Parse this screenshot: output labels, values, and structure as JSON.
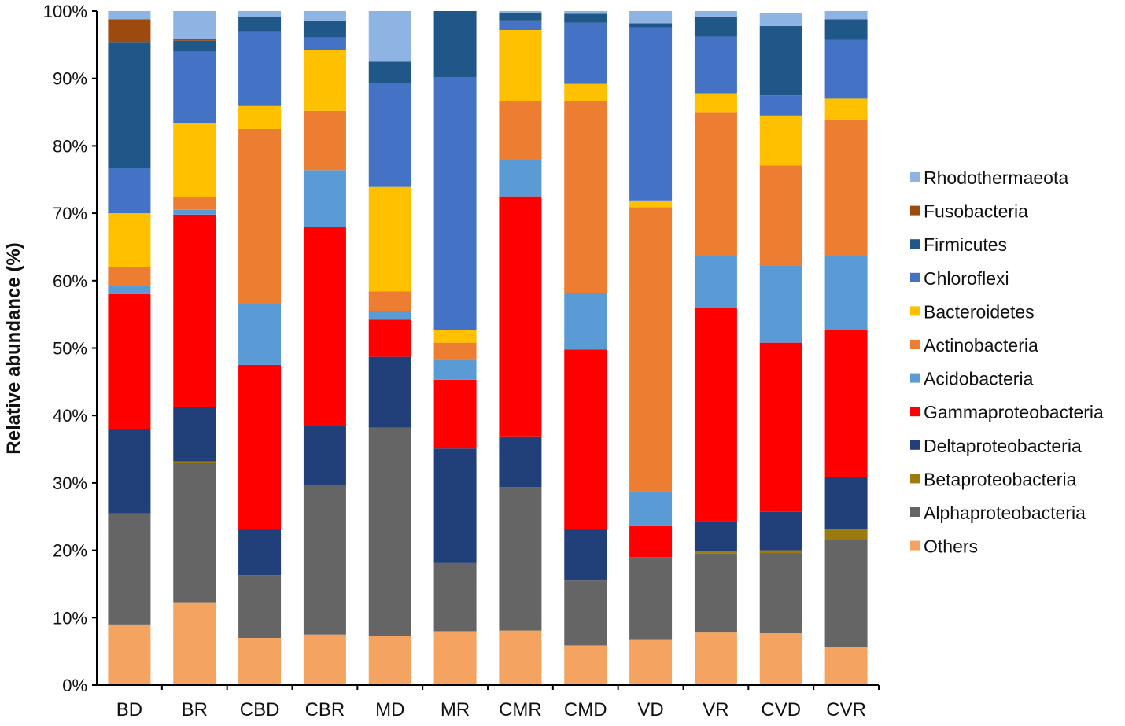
{
  "chart_data": {
    "type": "bar",
    "stacked": true,
    "percent": true,
    "title": "",
    "xlabel": "",
    "ylabel": "Relative abundance (%)",
    "ylim": [
      0,
      100
    ],
    "y_ticks": [
      "0%",
      "10%",
      "20%",
      "30%",
      "40%",
      "50%",
      "60%",
      "70%",
      "80%",
      "90%",
      "100%"
    ],
    "grid": false,
    "legend_position": "right",
    "categories": [
      "BD",
      "BR",
      "CBD",
      "CBR",
      "MD",
      "MR",
      "CMR",
      "CMD",
      "VD",
      "VR",
      "CVD",
      "CVR"
    ],
    "series": [
      {
        "name": "Others",
        "color": "#F4A460",
        "values": [
          9,
          12.3,
          7,
          7.5,
          7.3,
          8,
          8.1,
          5.9,
          6.7,
          7.8,
          7.7,
          5.6
        ]
      },
      {
        "name": "Alphaproteobacteria",
        "color": "#656565",
        "values": [
          16.5,
          20.7,
          9.3,
          22.2,
          30.9,
          10.1,
          21.3,
          9.6,
          12.3,
          11.7,
          11.9,
          15.9
        ]
      },
      {
        "name": "Betaproteobacteria",
        "color": "#9C7A0E",
        "values": [
          0,
          0.2,
          0,
          0,
          0,
          0,
          0,
          0,
          0,
          0.4,
          0.4,
          1.6
        ]
      },
      {
        "name": "Deltaproteobacteria",
        "color": "#213F78",
        "values": [
          12.5,
          8,
          6.8,
          8.7,
          10.5,
          17,
          7.5,
          7.6,
          0,
          4.3,
          5.7,
          7.8
        ]
      },
      {
        "name": "Gammaproteobacteria",
        "color": "#FF0000",
        "values": [
          20,
          28.6,
          24.4,
          29.6,
          5.5,
          10.2,
          35.6,
          26.7,
          4.6,
          31.8,
          25.1,
          21.8
        ]
      },
      {
        "name": "Acidobacteria",
        "color": "#5B9BD5",
        "values": [
          1.2,
          0.7,
          9.2,
          8.4,
          1.3,
          2.9,
          5.5,
          8.4,
          5.2,
          7.6,
          11.5,
          10.9
        ]
      },
      {
        "name": "Actinobacteria",
        "color": "#ED7D31",
        "values": [
          2.8,
          1.9,
          25.8,
          8.8,
          2.9,
          2.6,
          8.6,
          28.5,
          42.1,
          21.3,
          14.8,
          20.3
        ]
      },
      {
        "name": "Bacteroidetes",
        "color": "#FFC000",
        "values": [
          8,
          11,
          3.4,
          9,
          15.5,
          1.9,
          10.6,
          2.5,
          1,
          2.9,
          7.4,
          3.1
        ]
      },
      {
        "name": "Chloroflexi",
        "color": "#4472C4",
        "values": [
          6.7,
          10.6,
          11,
          1.9,
          15.4,
          37.5,
          1.3,
          9.1,
          25.7,
          8.4,
          3,
          8.7
        ]
      },
      {
        "name": "Firmicutes",
        "color": "#1F5888",
        "values": [
          18.6,
          1.6,
          2.2,
          2.4,
          3.2,
          9.8,
          1.2,
          1.3,
          0.6,
          3,
          10.3,
          3.1
        ]
      },
      {
        "name": "Fusobacteria",
        "color": "#9E4A0F",
        "values": [
          3.5,
          0.3,
          0,
          0,
          0,
          0,
          0,
          0,
          0,
          0,
          0,
          0
        ]
      },
      {
        "name": "Rhodothermaeota",
        "color": "#8DB4E2",
        "values": [
          1.2,
          4.1,
          0.9,
          1.5,
          7.5,
          0,
          0.3,
          0.4,
          1.8,
          0.8,
          1.9,
          1.2
        ]
      }
    ]
  }
}
